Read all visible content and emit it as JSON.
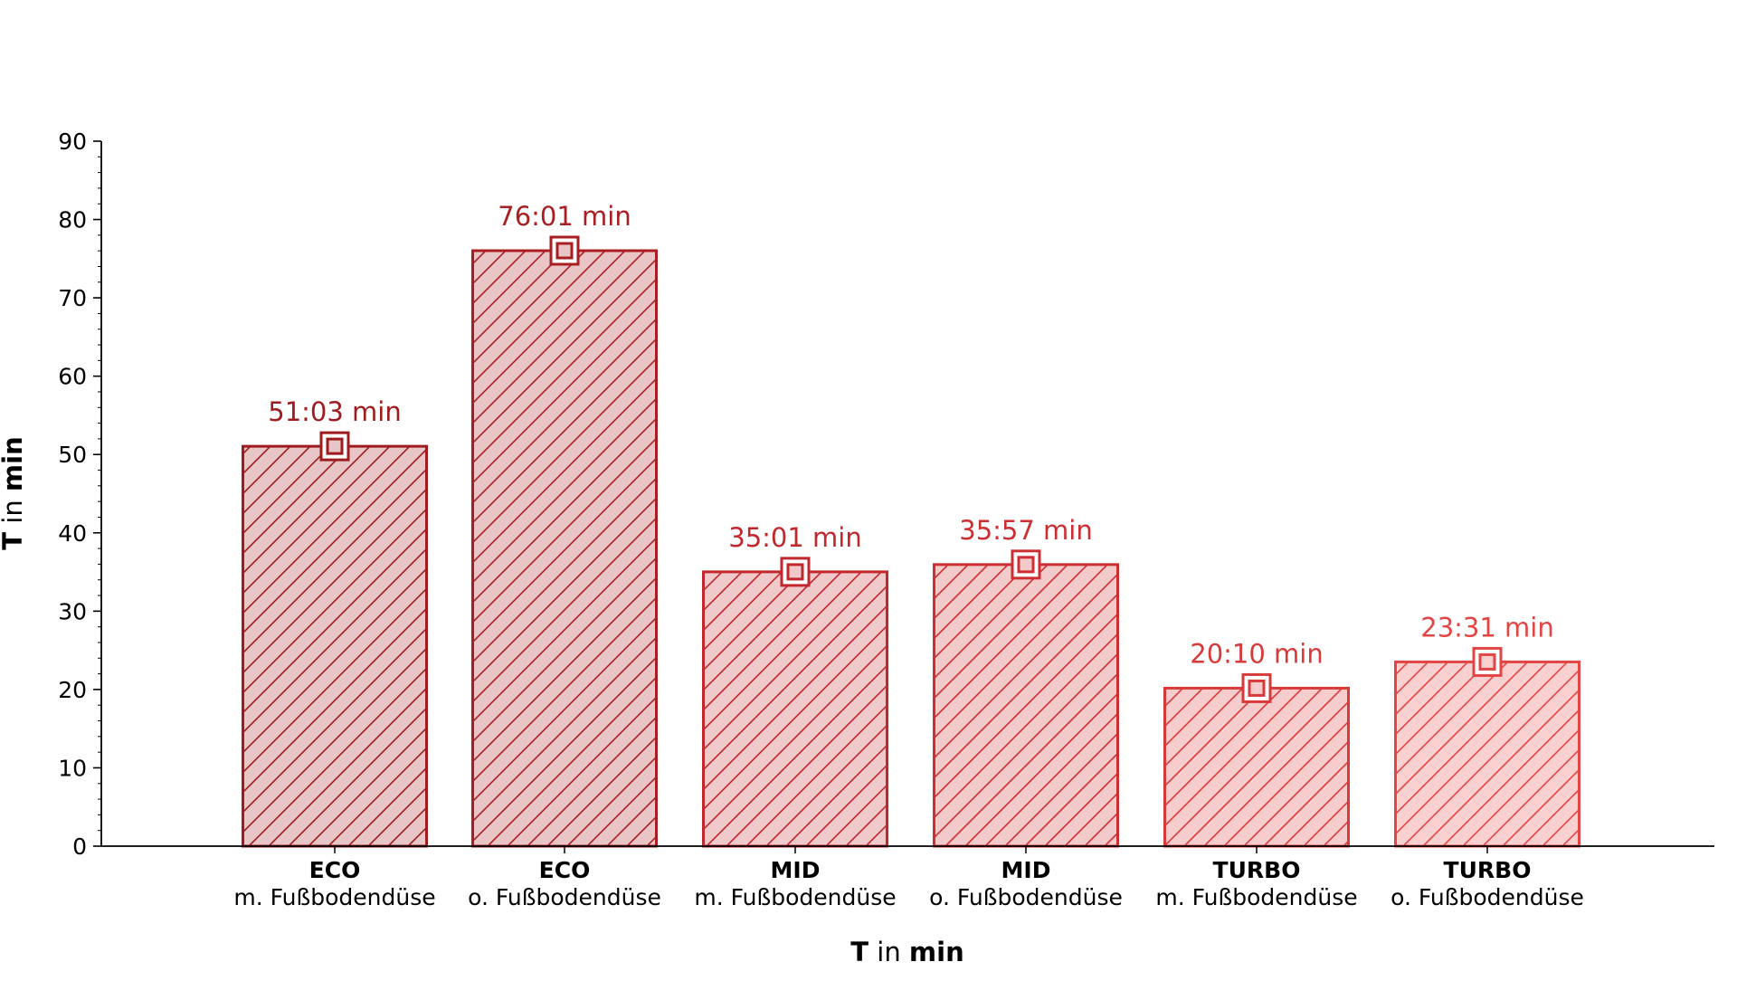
{
  "chart_data": {
    "type": "bar",
    "categories": [
      {
        "mode": "ECO",
        "variant": "m. Fußbodendüse"
      },
      {
        "mode": "ECO",
        "variant": "o. Fußbodendüse"
      },
      {
        "mode": "MID",
        "variant": "m. Fußbodendüse"
      },
      {
        "mode": "MID",
        "variant": "o. Fußbodendüse"
      },
      {
        "mode": "TURBO",
        "variant": "m. Fußbodendüse"
      },
      {
        "mode": "TURBO",
        "variant": "o. Fußbodendüse"
      }
    ],
    "values": [
      51.05,
      76.02,
      35.02,
      35.95,
      20.17,
      23.52
    ],
    "value_labels": [
      "51:03 min",
      "76:01 min",
      "35:01 min",
      "35:57 min",
      "20:10 min",
      "23:31 min"
    ],
    "bar_colors": [
      "#9e1b1e",
      "#a81e22",
      "#c1272d",
      "#cc2e32",
      "#d83a3a",
      "#e34545"
    ],
    "bar_fill_colors": [
      "#e8c5c6",
      "#eac5c6",
      "#f0c9ca",
      "#f2caca",
      "#f6cccc",
      "#f9d0d0"
    ],
    "ylabel": {
      "symbol": "T",
      "connector": "in",
      "unit": "min"
    },
    "xlabel": {
      "symbol": "T",
      "connector": "in",
      "unit": "min"
    },
    "y_ticks": [
      "0",
      "10",
      "20",
      "30",
      "40",
      "50",
      "60",
      "70",
      "80",
      "90"
    ],
    "ylim": [
      0,
      90
    ],
    "grid": false,
    "legend": "none",
    "bar_pattern": "diagonal-hatch",
    "marker": "square"
  }
}
